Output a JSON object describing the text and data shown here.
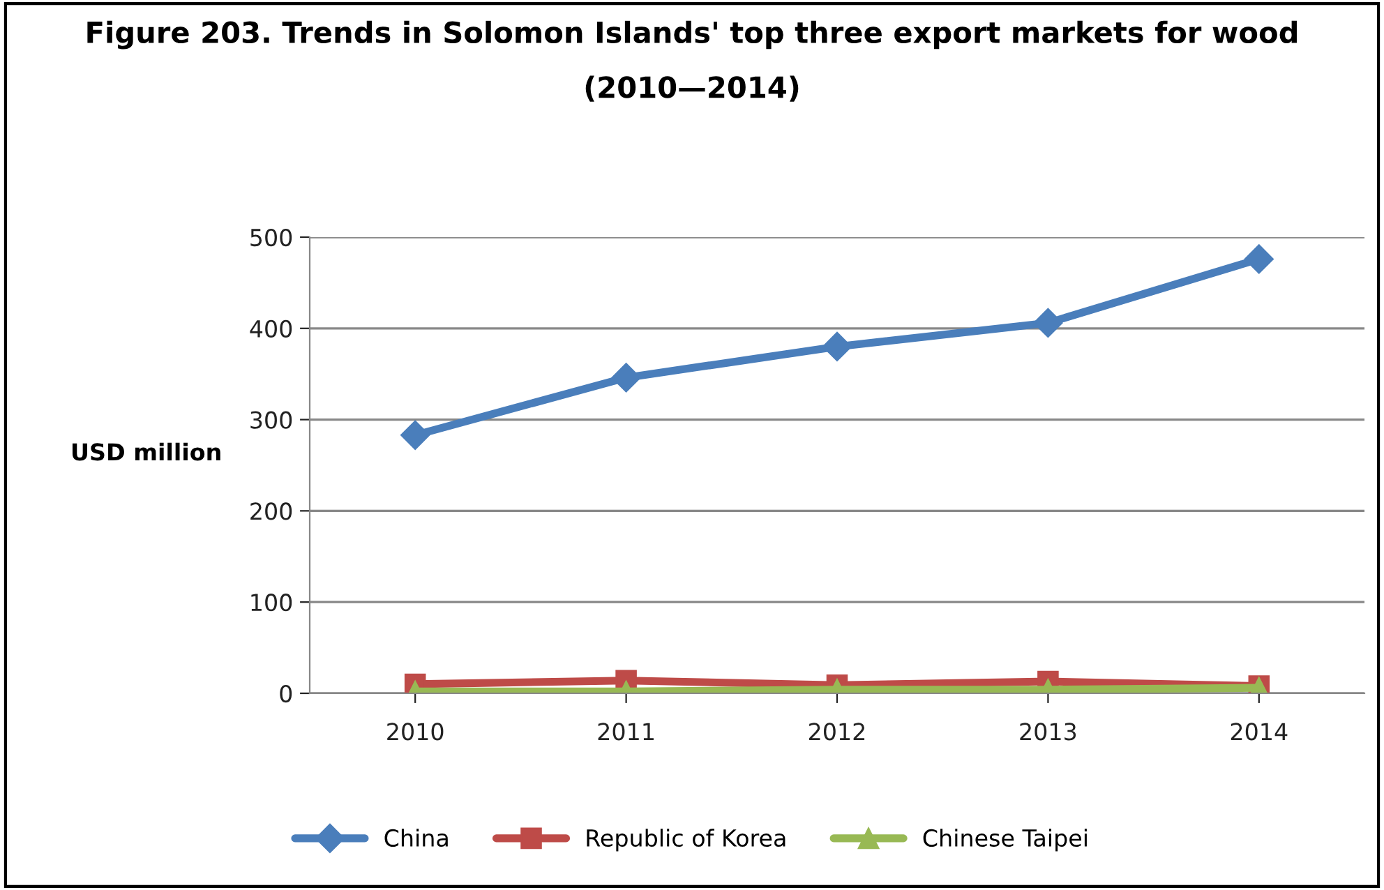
{
  "chart_data": {
    "type": "line",
    "title": "Figure 203. Trends in Solomon Islands' top three export markets for wood (2010—2014)",
    "ylabel": "USD million",
    "categories": [
      "2010",
      "2011",
      "2012",
      "2013",
      "2014"
    ],
    "series": [
      {
        "name": "China",
        "color": "#4a7ebb",
        "marker": "diamond",
        "values": [
          283,
          346,
          380,
          406,
          476
        ]
      },
      {
        "name": "Republic of Korea",
        "color": "#be4b48",
        "marker": "square",
        "values": [
          10,
          14,
          9,
          13,
          8
        ]
      },
      {
        "name": "Chinese Taipei",
        "color": "#98b954",
        "marker": "triangle",
        "values": [
          2,
          2,
          4,
          4,
          6
        ]
      }
    ],
    "ylim": [
      0,
      500
    ],
    "yticks": [
      0,
      100,
      200,
      300,
      400,
      500
    ],
    "grid": "y",
    "legend": "bottom"
  }
}
